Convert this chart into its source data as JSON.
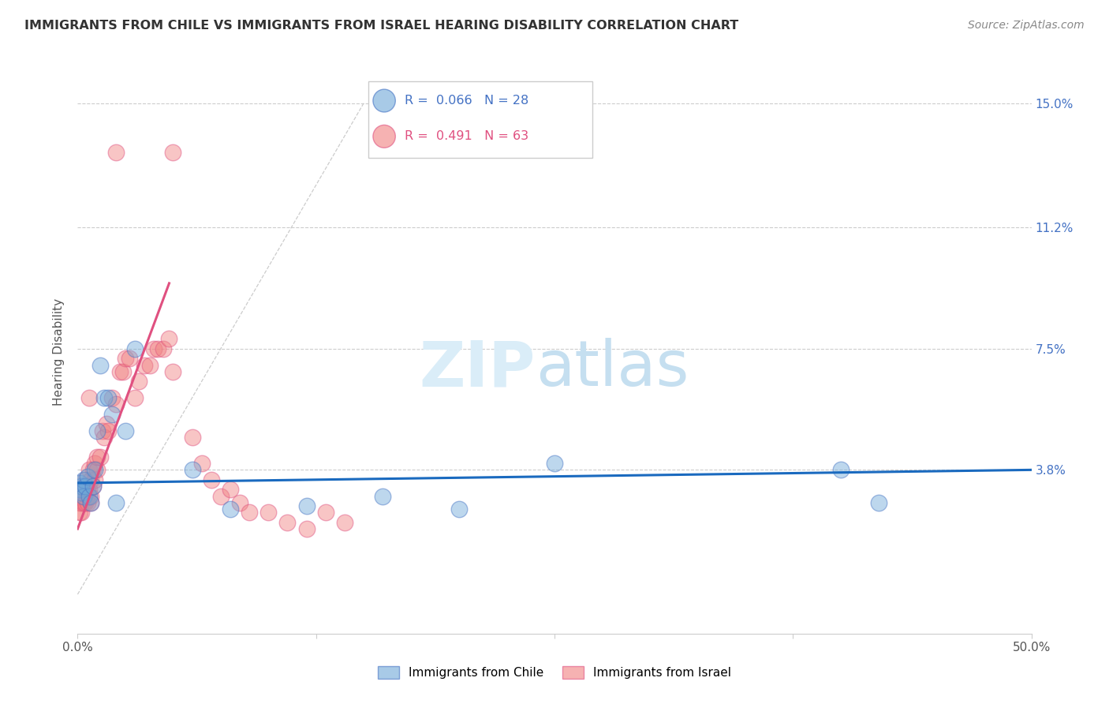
{
  "title": "IMMIGRANTS FROM CHILE VS IMMIGRANTS FROM ISRAEL HEARING DISABILITY CORRELATION CHART",
  "source": "Source: ZipAtlas.com",
  "ylabel": "Hearing Disability",
  "color_chile": "#6ea8d8",
  "color_israel": "#f08080",
  "line_color_chile": "#1a6abf",
  "line_color_israel": "#e05080",
  "xlim": [
    0.0,
    0.5
  ],
  "ylim": [
    -0.012,
    0.16
  ],
  "ytick_positions": [
    0.038,
    0.075,
    0.112,
    0.15
  ],
  "ytick_labels": [
    "3.8%",
    "7.5%",
    "11.2%",
    "15.0%"
  ],
  "xtick_positions": [
    0.0,
    0.125,
    0.25,
    0.375,
    0.5
  ],
  "xtick_labels": [
    "0.0%",
    "",
    "",
    "",
    "50.0%"
  ],
  "chile_x": [
    0.001,
    0.001,
    0.002,
    0.002,
    0.003,
    0.003,
    0.004,
    0.005,
    0.006,
    0.007,
    0.008,
    0.009,
    0.01,
    0.012,
    0.014,
    0.016,
    0.018,
    0.02,
    0.025,
    0.03,
    0.06,
    0.08,
    0.12,
    0.16,
    0.2,
    0.25,
    0.4,
    0.42
  ],
  "chile_y": [
    0.034,
    0.032,
    0.031,
    0.033,
    0.03,
    0.035,
    0.033,
    0.036,
    0.03,
    0.028,
    0.033,
    0.038,
    0.05,
    0.07,
    0.06,
    0.06,
    0.055,
    0.028,
    0.05,
    0.075,
    0.038,
    0.026,
    0.027,
    0.03,
    0.026,
    0.04,
    0.038,
    0.028
  ],
  "israel_x": [
    0.001,
    0.001,
    0.001,
    0.001,
    0.002,
    0.002,
    0.002,
    0.002,
    0.003,
    0.003,
    0.003,
    0.004,
    0.004,
    0.004,
    0.005,
    0.005,
    0.005,
    0.006,
    0.006,
    0.006,
    0.007,
    0.007,
    0.007,
    0.008,
    0.008,
    0.009,
    0.009,
    0.01,
    0.01,
    0.012,
    0.013,
    0.014,
    0.015,
    0.016,
    0.018,
    0.02,
    0.022,
    0.024,
    0.025,
    0.027,
    0.03,
    0.032,
    0.035,
    0.038,
    0.04,
    0.042,
    0.045,
    0.048,
    0.05,
    0.02,
    0.05,
    0.06,
    0.065,
    0.07,
    0.075,
    0.08,
    0.085,
    0.09,
    0.1,
    0.11,
    0.12,
    0.13,
    0.14
  ],
  "israel_y": [
    0.03,
    0.028,
    0.025,
    0.032,
    0.028,
    0.03,
    0.032,
    0.025,
    0.03,
    0.033,
    0.028,
    0.032,
    0.028,
    0.035,
    0.03,
    0.032,
    0.028,
    0.06,
    0.038,
    0.032,
    0.03,
    0.035,
    0.028,
    0.033,
    0.038,
    0.035,
    0.04,
    0.038,
    0.042,
    0.042,
    0.05,
    0.048,
    0.052,
    0.05,
    0.06,
    0.058,
    0.068,
    0.068,
    0.072,
    0.072,
    0.06,
    0.065,
    0.07,
    0.07,
    0.075,
    0.075,
    0.075,
    0.078,
    0.068,
    0.135,
    0.135,
    0.048,
    0.04,
    0.035,
    0.03,
    0.032,
    0.028,
    0.025,
    0.025,
    0.022,
    0.02,
    0.025,
    0.022
  ]
}
